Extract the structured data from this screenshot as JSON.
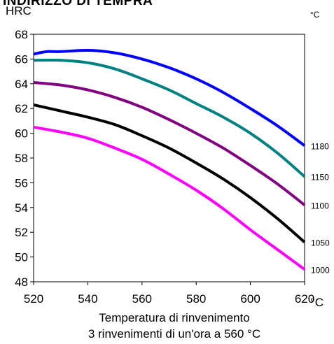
{
  "chart_data": {
    "type": "line",
    "title": "INDIRIZZO DI TEMPRA",
    "y_unit": "HRC",
    "legend_unit": "°C",
    "x_unit": "°C",
    "xlabel": "Temperatura di rinvenimento",
    "xlabel_sub": "3 rinvenimenti di un'ora a 560 °C",
    "xlim": [
      520,
      620
    ],
    "ylim": [
      48,
      68
    ],
    "x_ticks": [
      520,
      540,
      560,
      580,
      600,
      620
    ],
    "y_ticks": [
      48,
      50,
      52,
      54,
      56,
      58,
      60,
      62,
      64,
      66,
      68
    ],
    "grid": false,
    "legend_placement": "right, end of each line",
    "series": [
      {
        "name": "1180",
        "color": "#0000ff",
        "points": [
          [
            520,
            66.4
          ],
          [
            525,
            66.6
          ],
          [
            530,
            66.6
          ],
          [
            540,
            66.7
          ],
          [
            550,
            66.5
          ],
          [
            560,
            66.0
          ],
          [
            570,
            65.3
          ],
          [
            580,
            64.4
          ],
          [
            590,
            63.3
          ],
          [
            600,
            62.0
          ],
          [
            610,
            60.6
          ],
          [
            620,
            59.0
          ]
        ]
      },
      {
        "name": "1150",
        "color": "#008080",
        "points": [
          [
            520,
            65.9
          ],
          [
            530,
            65.9
          ],
          [
            540,
            65.7
          ],
          [
            550,
            65.2
          ],
          [
            560,
            64.4
          ],
          [
            570,
            63.5
          ],
          [
            580,
            62.4
          ],
          [
            590,
            61.3
          ],
          [
            600,
            60.0
          ],
          [
            610,
            58.4
          ],
          [
            620,
            56.5
          ]
        ]
      },
      {
        "name": "1100",
        "color": "#800080",
        "points": [
          [
            520,
            64.1
          ],
          [
            530,
            63.9
          ],
          [
            540,
            63.5
          ],
          [
            550,
            62.9
          ],
          [
            560,
            62.1
          ],
          [
            570,
            61.1
          ],
          [
            580,
            60.0
          ],
          [
            590,
            58.8
          ],
          [
            600,
            57.4
          ],
          [
            610,
            55.9
          ],
          [
            620,
            54.2
          ]
        ]
      },
      {
        "name": "1050",
        "color": "#000000",
        "points": [
          [
            520,
            62.3
          ],
          [
            530,
            61.8
          ],
          [
            540,
            61.3
          ],
          [
            550,
            60.7
          ],
          [
            560,
            59.8
          ],
          [
            570,
            58.8
          ],
          [
            580,
            57.6
          ],
          [
            590,
            56.3
          ],
          [
            600,
            54.8
          ],
          [
            610,
            53.1
          ],
          [
            620,
            51.2
          ]
        ]
      },
      {
        "name": "1000",
        "color": "#ff00ff",
        "points": [
          [
            520,
            60.5
          ],
          [
            530,
            60.1
          ],
          [
            540,
            59.6
          ],
          [
            550,
            58.8
          ],
          [
            560,
            57.9
          ],
          [
            570,
            56.7
          ],
          [
            580,
            55.4
          ],
          [
            590,
            53.9
          ],
          [
            600,
            52.2
          ],
          [
            610,
            50.6
          ],
          [
            620,
            49.0
          ]
        ]
      }
    ]
  }
}
